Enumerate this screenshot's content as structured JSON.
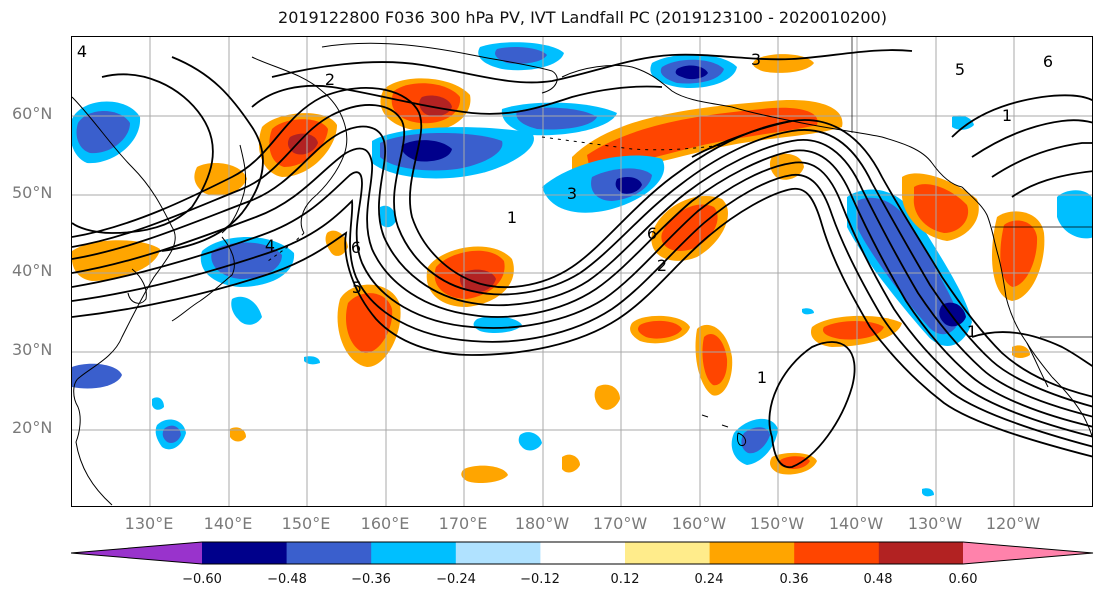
{
  "title": "2019122800 F036 300 hPa PV, IVT Landfall PC (2019123100 - 2020010200)",
  "lat_labels": [
    "60°N",
    "50°N",
    "40°N",
    "30°N",
    "20°N"
  ],
  "lon_labels": [
    "130°E",
    "140°E",
    "150°E",
    "160°E",
    "170°E",
    "180°W",
    "170°W",
    "160°W",
    "150°W",
    "140°W",
    "130°W",
    "120°W"
  ],
  "contour_labels": [
    "2",
    "3",
    "5",
    "6",
    "1",
    "4",
    "6",
    "2",
    "3",
    "1",
    "1",
    "6",
    "5",
    "4",
    "1"
  ],
  "colorbar": {
    "ticks": [
      "−0.60",
      "−0.48",
      "−0.36",
      "−0.24",
      "−0.12",
      "0.12",
      "0.24",
      "0.36",
      "0.48",
      "0.60"
    ],
    "colors": [
      "#9933cc",
      "#00008b",
      "#3a5fcd",
      "#00bfff",
      "#b0e2ff",
      "#ffffff",
      "#ffec8b",
      "#ffa500",
      "#ff4500",
      "#b22222",
      "#ff82ab"
    ]
  },
  "colors": {
    "contour": "#000000",
    "grid": "#a8a8a8",
    "coast": "#000000"
  }
}
